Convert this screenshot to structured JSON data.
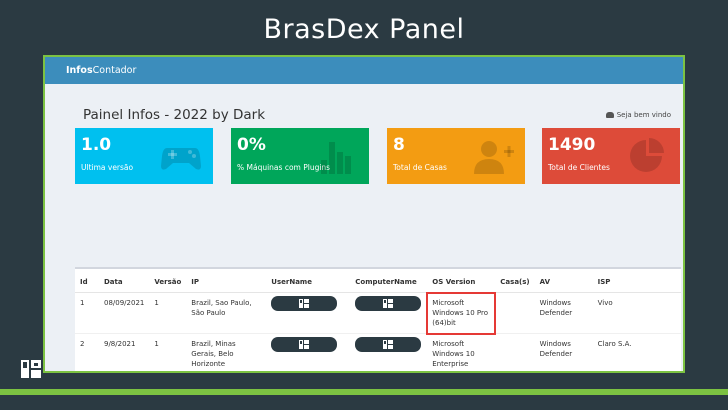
{
  "slide": {
    "title": "BrasDex Panel"
  },
  "navbar": {
    "brand_bold": "Infos",
    "brand_rest": "Contador"
  },
  "page": {
    "title": "Painel Infos - 2022 by Dark",
    "welcome": "Seja bem vindo"
  },
  "boxes": [
    {
      "value": "1.0",
      "label": "Ultima versão",
      "color": "#00c0ef",
      "icon": "gamepad-icon"
    },
    {
      "value": "0%",
      "label": "% Máquinas com Plugins",
      "color": "#00a65a",
      "icon": "bar-chart-icon"
    },
    {
      "value": "8",
      "label": "Total de Casas",
      "color": "#f39c12",
      "icon": "user-plus-icon"
    },
    {
      "value": "1490",
      "label": "Total de Clientes",
      "color": "#dd4b39",
      "icon": "pie-chart-icon"
    }
  ],
  "table": {
    "headers": [
      "Id",
      "Data",
      "Versão",
      "IP",
      "UserName",
      "ComputerName",
      "OS Version",
      "Casa(s)",
      "AV",
      "ISP"
    ],
    "rows": [
      {
        "id": "1",
        "date": "08/09/2021",
        "version": "1",
        "ip": "Brazil, Sao Paulo, São Paulo",
        "os": "Microsoft Windows 10 Pro (64)bit",
        "casas": "",
        "av": "Windows Defender",
        "isp": "Vivo"
      },
      {
        "id": "2",
        "date": "9/8/2021",
        "version": "1",
        "ip": "Brazil, Minas Gerais, Belo Horizonte",
        "os": "Microsoft Windows 10 Enterprise",
        "casas": "",
        "av": "Windows Defender",
        "isp": "Claro S.A."
      }
    ]
  },
  "colors": {
    "accent": "#7cc242",
    "background": "#2b3a42",
    "navbar": "#3c8dbc",
    "highlight": "#e53935"
  }
}
